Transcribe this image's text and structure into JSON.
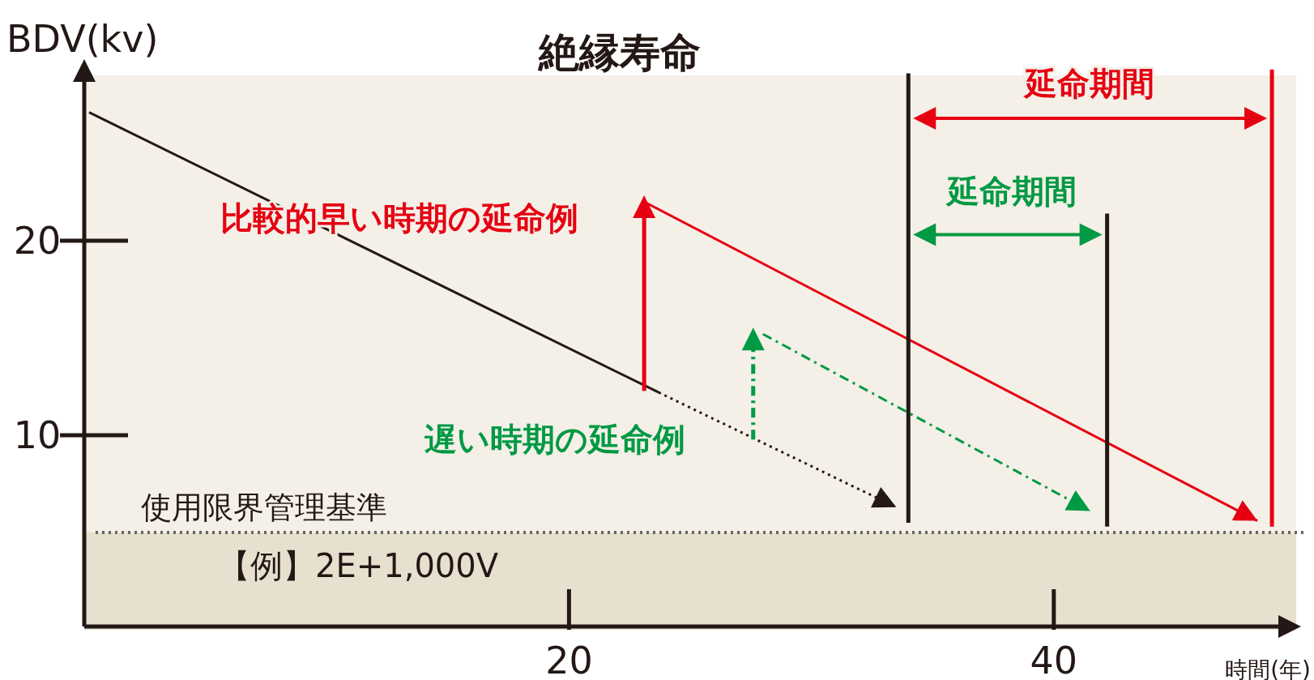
{
  "chart_data": {
    "type": "line",
    "title": "絶縁寿命",
    "xlabel": "時間(年)",
    "ylabel": "BDV(kv)",
    "xlim": [
      0,
      50
    ],
    "ylim": [
      0,
      29
    ],
    "xticks": [
      20,
      40
    ],
    "yticks": [
      10,
      20
    ],
    "grid": false,
    "bands": [
      {
        "axis": "y",
        "from": 0,
        "to": 5,
        "color": "#e8e0cf"
      }
    ],
    "ref_lines": [
      {
        "axis": "y",
        "value": 5,
        "label": "使用限界管理基準",
        "color": "#666666",
        "line_style": "dotted"
      }
    ],
    "series": [
      {
        "color": "#231815",
        "line_style": "solid",
        "x": [
          0.2,
          23.7
        ],
        "values": [
          26.6,
          12.2
        ]
      },
      {
        "color": "#231815",
        "line_style": "dotted",
        "x": [
          23.7,
          33.5
        ],
        "values": [
          12.2,
          6.3
        ]
      },
      {
        "color": "#e60012",
        "line_style": "solid",
        "x": [
          23.1,
          48.4
        ],
        "values": [
          22.0,
          5.6
        ]
      },
      {
        "color": "#009944",
        "line_style": "dashdot",
        "x": [
          28.0,
          41.5
        ],
        "values": [
          15.2,
          6.1
        ]
      },
      {
        "color": "#231815",
        "line_style": "solid",
        "x": [
          34.0,
          34.0
        ],
        "values": [
          5.5,
          28.6
        ]
      },
      {
        "color": "#231815",
        "line_style": "solid",
        "x": [
          42.2,
          42.2
        ],
        "values": [
          5.3,
          21.4
        ]
      },
      {
        "color": "#e60012",
        "line_style": "solid",
        "x": [
          49.0,
          49.0
        ],
        "values": [
          5.3,
          28.8
        ]
      }
    ],
    "annotations": [
      "比較的早い時期の延命例",
      "遅い時期の延命例",
      "延命期間",
      "延命期間",
      "【例】2E+1,000V"
    ]
  }
}
